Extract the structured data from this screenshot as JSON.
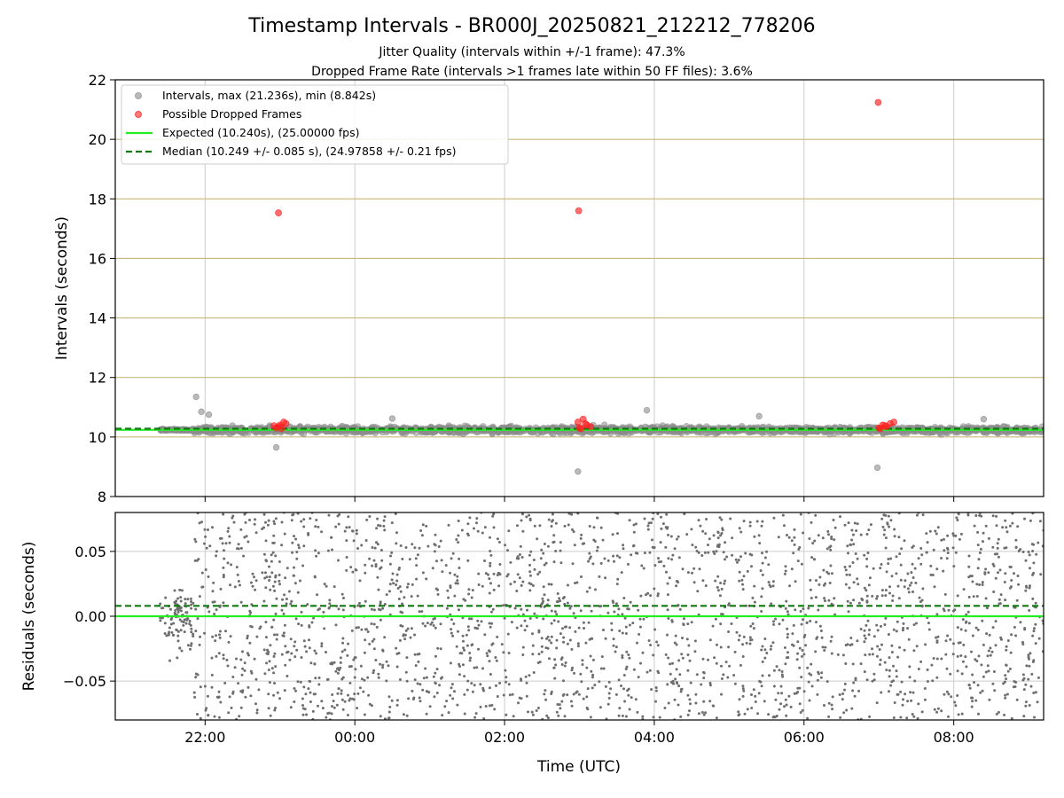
{
  "figure": {
    "title": "Timestamp Intervals - BR000J_20250821_212212_778206",
    "subtitle1": "Jitter Quality (intervals within +/-1 frame): 47.3%",
    "subtitle2": "Dropped Frame Rate (intervals >1 frames late within 50 FF files): 3.6%"
  },
  "chart_data": [
    {
      "type": "scatter",
      "name": "intervals",
      "xlabel": "",
      "ylabel": "Intervals (seconds)",
      "xlim": [
        20.8,
        33.2
      ],
      "ylim": [
        8,
        22
      ],
      "yticks": [
        8,
        10,
        12,
        14,
        16,
        18,
        20,
        22
      ],
      "xticks_hours": [
        22,
        24,
        26,
        28,
        30,
        32
      ],
      "xtick_labels": [
        "22:00",
        "00:00",
        "02:00",
        "04:00",
        "06:00",
        "08:00"
      ],
      "vertical_grid": true,
      "horizontal_gridlines": [
        10,
        12,
        14,
        16,
        18,
        20
      ],
      "legend_position": "top-left",
      "series": [
        {
          "name": "Intervals, max (21.236s), min (8.842s)",
          "kind": "scatter",
          "color": "#8c8c8c",
          "x_range_hours": [
            21.4,
            33.2
          ],
          "band": [
            10.05,
            10.45
          ],
          "outliers": [
            {
              "x": 21.88,
              "y": 11.35
            },
            {
              "x": 21.95,
              "y": 10.85
            },
            {
              "x": 22.95,
              "y": 9.65
            },
            {
              "x": 26.98,
              "y": 8.84
            },
            {
              "x": 27.9,
              "y": 10.9
            },
            {
              "x": 29.4,
              "y": 10.7
            },
            {
              "x": 30.98,
              "y": 8.97
            },
            {
              "x": 22.05,
              "y": 10.75
            },
            {
              "x": 24.5,
              "y": 10.62
            },
            {
              "x": 32.4,
              "y": 10.6
            }
          ]
        },
        {
          "name": "Possible Dropped Frames",
          "kind": "scatter",
          "color": "#ff2020",
          "points": [
            {
              "x": 22.98,
              "y": 17.53
            },
            {
              "x": 26.99,
              "y": 17.6
            },
            {
              "x": 30.99,
              "y": 21.24
            },
            {
              "x": 22.95,
              "y": 10.3
            },
            {
              "x": 23.0,
              "y": 10.4
            },
            {
              "x": 23.05,
              "y": 10.5
            },
            {
              "x": 22.98,
              "y": 10.35
            },
            {
              "x": 23.02,
              "y": 10.28
            },
            {
              "x": 23.08,
              "y": 10.45
            },
            {
              "x": 22.92,
              "y": 10.38
            },
            {
              "x": 27.0,
              "y": 10.3
            },
            {
              "x": 27.05,
              "y": 10.6
            },
            {
              "x": 27.1,
              "y": 10.4
            },
            {
              "x": 26.98,
              "y": 10.5
            },
            {
              "x": 27.15,
              "y": 10.35
            },
            {
              "x": 27.02,
              "y": 10.28
            },
            {
              "x": 27.08,
              "y": 10.45
            },
            {
              "x": 31.0,
              "y": 10.3
            },
            {
              "x": 31.05,
              "y": 10.4
            },
            {
              "x": 31.1,
              "y": 10.35
            },
            {
              "x": 31.15,
              "y": 10.45
            },
            {
              "x": 31.2,
              "y": 10.5
            },
            {
              "x": 31.02,
              "y": 10.28
            },
            {
              "x": 31.08,
              "y": 10.38
            }
          ]
        },
        {
          "name": "Expected (10.240s), (25.00000 fps)",
          "kind": "hline",
          "y": 10.24,
          "color": "#22ee22",
          "style": "solid"
        },
        {
          "name": "Median (10.249 +/- 0.085 s), (24.97858 +/- 0.21 fps)",
          "kind": "hline",
          "y": 10.249,
          "color": "#117711",
          "style": "dashed"
        }
      ]
    },
    {
      "type": "scatter",
      "name": "residuals",
      "xlabel": "Time (UTC)",
      "ylabel": "Residuals (seconds)",
      "xlim": [
        20.8,
        33.2
      ],
      "ylim": [
        -0.08,
        0.08
      ],
      "yticks": [
        -0.05,
        0.0,
        0.05
      ],
      "ytick_labels": [
        "−0.05",
        "0.00",
        "0.05"
      ],
      "xticks_hours": [
        22,
        24,
        26,
        28,
        30,
        32
      ],
      "xtick_labels": [
        "22:00",
        "00:00",
        "02:00",
        "04:00",
        "06:00",
        "08:00"
      ],
      "grid": true,
      "series": [
        {
          "name": "residuals",
          "kind": "scatter",
          "color": "#6e6e6e",
          "x_range_hours": [
            21.4,
            33.2
          ],
          "y_range": [
            -0.08,
            0.08
          ]
        },
        {
          "name": "expected",
          "kind": "hline",
          "y": 0.0,
          "color": "#22ee22",
          "style": "solid"
        },
        {
          "name": "median",
          "kind": "hline",
          "y": 0.008,
          "color": "#117711",
          "style": "dashed"
        }
      ]
    }
  ]
}
